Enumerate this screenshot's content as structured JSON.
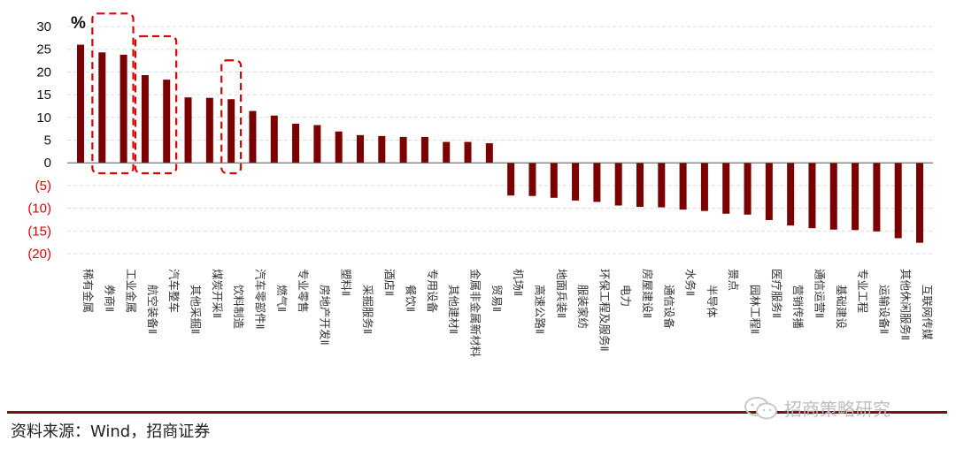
{
  "chart_data": {
    "type": "bar",
    "unit_label": "%",
    "ylim": [
      -20,
      30
    ],
    "yticks": [
      30,
      25,
      20,
      15,
      10,
      5,
      0,
      -5,
      -10,
      -15,
      -20
    ],
    "ytick_labels": [
      "30",
      "25",
      "20",
      "15",
      "10",
      "5",
      "0",
      "(5)",
      "(10)",
      "(15)",
      "(20)"
    ],
    "negative_tick_color": "#e00000",
    "bar_color": "#7b0000",
    "highlight_color": "#e00000",
    "grid": true,
    "categories": [
      "稀有金属",
      "券商Ⅱ",
      "工业金属",
      "航空装备Ⅱ",
      "汽车整车",
      "其他采掘Ⅱ",
      "煤炭开采Ⅱ",
      "饮料制造",
      "汽车零部件Ⅱ",
      "燃气Ⅱ",
      "专业零售",
      "房地产开发Ⅱ",
      "塑料Ⅱ",
      "采掘服务Ⅱ",
      "酒店Ⅱ",
      "餐饮Ⅱ",
      "专用设备",
      "其他建材Ⅱ",
      "金属非金属新材料",
      "贸易Ⅱ",
      "机场Ⅱ",
      "高速公路Ⅱ",
      "地面兵装Ⅱ",
      "服装家纺",
      "环保工程及服务Ⅱ",
      "电力",
      "房屋建设Ⅱ",
      "通信设备",
      "水务Ⅱ",
      "半导体",
      "景点",
      "园林工程Ⅱ",
      "医疗服务Ⅱ",
      "营销传播",
      "通信运营Ⅱ",
      "基础建设",
      "专业工程",
      "运输设备Ⅱ",
      "其他休闲服务Ⅱ",
      "互联网传媒"
    ],
    "values": [
      26.0,
      24.3,
      23.8,
      19.3,
      18.3,
      14.4,
      14.3,
      14.0,
      11.4,
      10.4,
      8.6,
      8.3,
      6.9,
      6.1,
      5.9,
      5.7,
      5.7,
      4.6,
      4.6,
      4.3,
      -7.2,
      -7.3,
      -7.7,
      -8.3,
      -8.6,
      -9.4,
      -9.7,
      -9.8,
      -10.3,
      -10.6,
      -11.2,
      -11.4,
      -12.6,
      -13.8,
      -14.4,
      -14.7,
      -14.8,
      -15.1,
      -16.6,
      -17.6
    ],
    "highlighted_groups": [
      [
        1,
        2
      ],
      [
        3,
        4
      ],
      [
        7,
        7
      ]
    ]
  },
  "footer": {
    "source": "资料来源：Wind，招商证券",
    "watermark": "招商策略研究"
  }
}
